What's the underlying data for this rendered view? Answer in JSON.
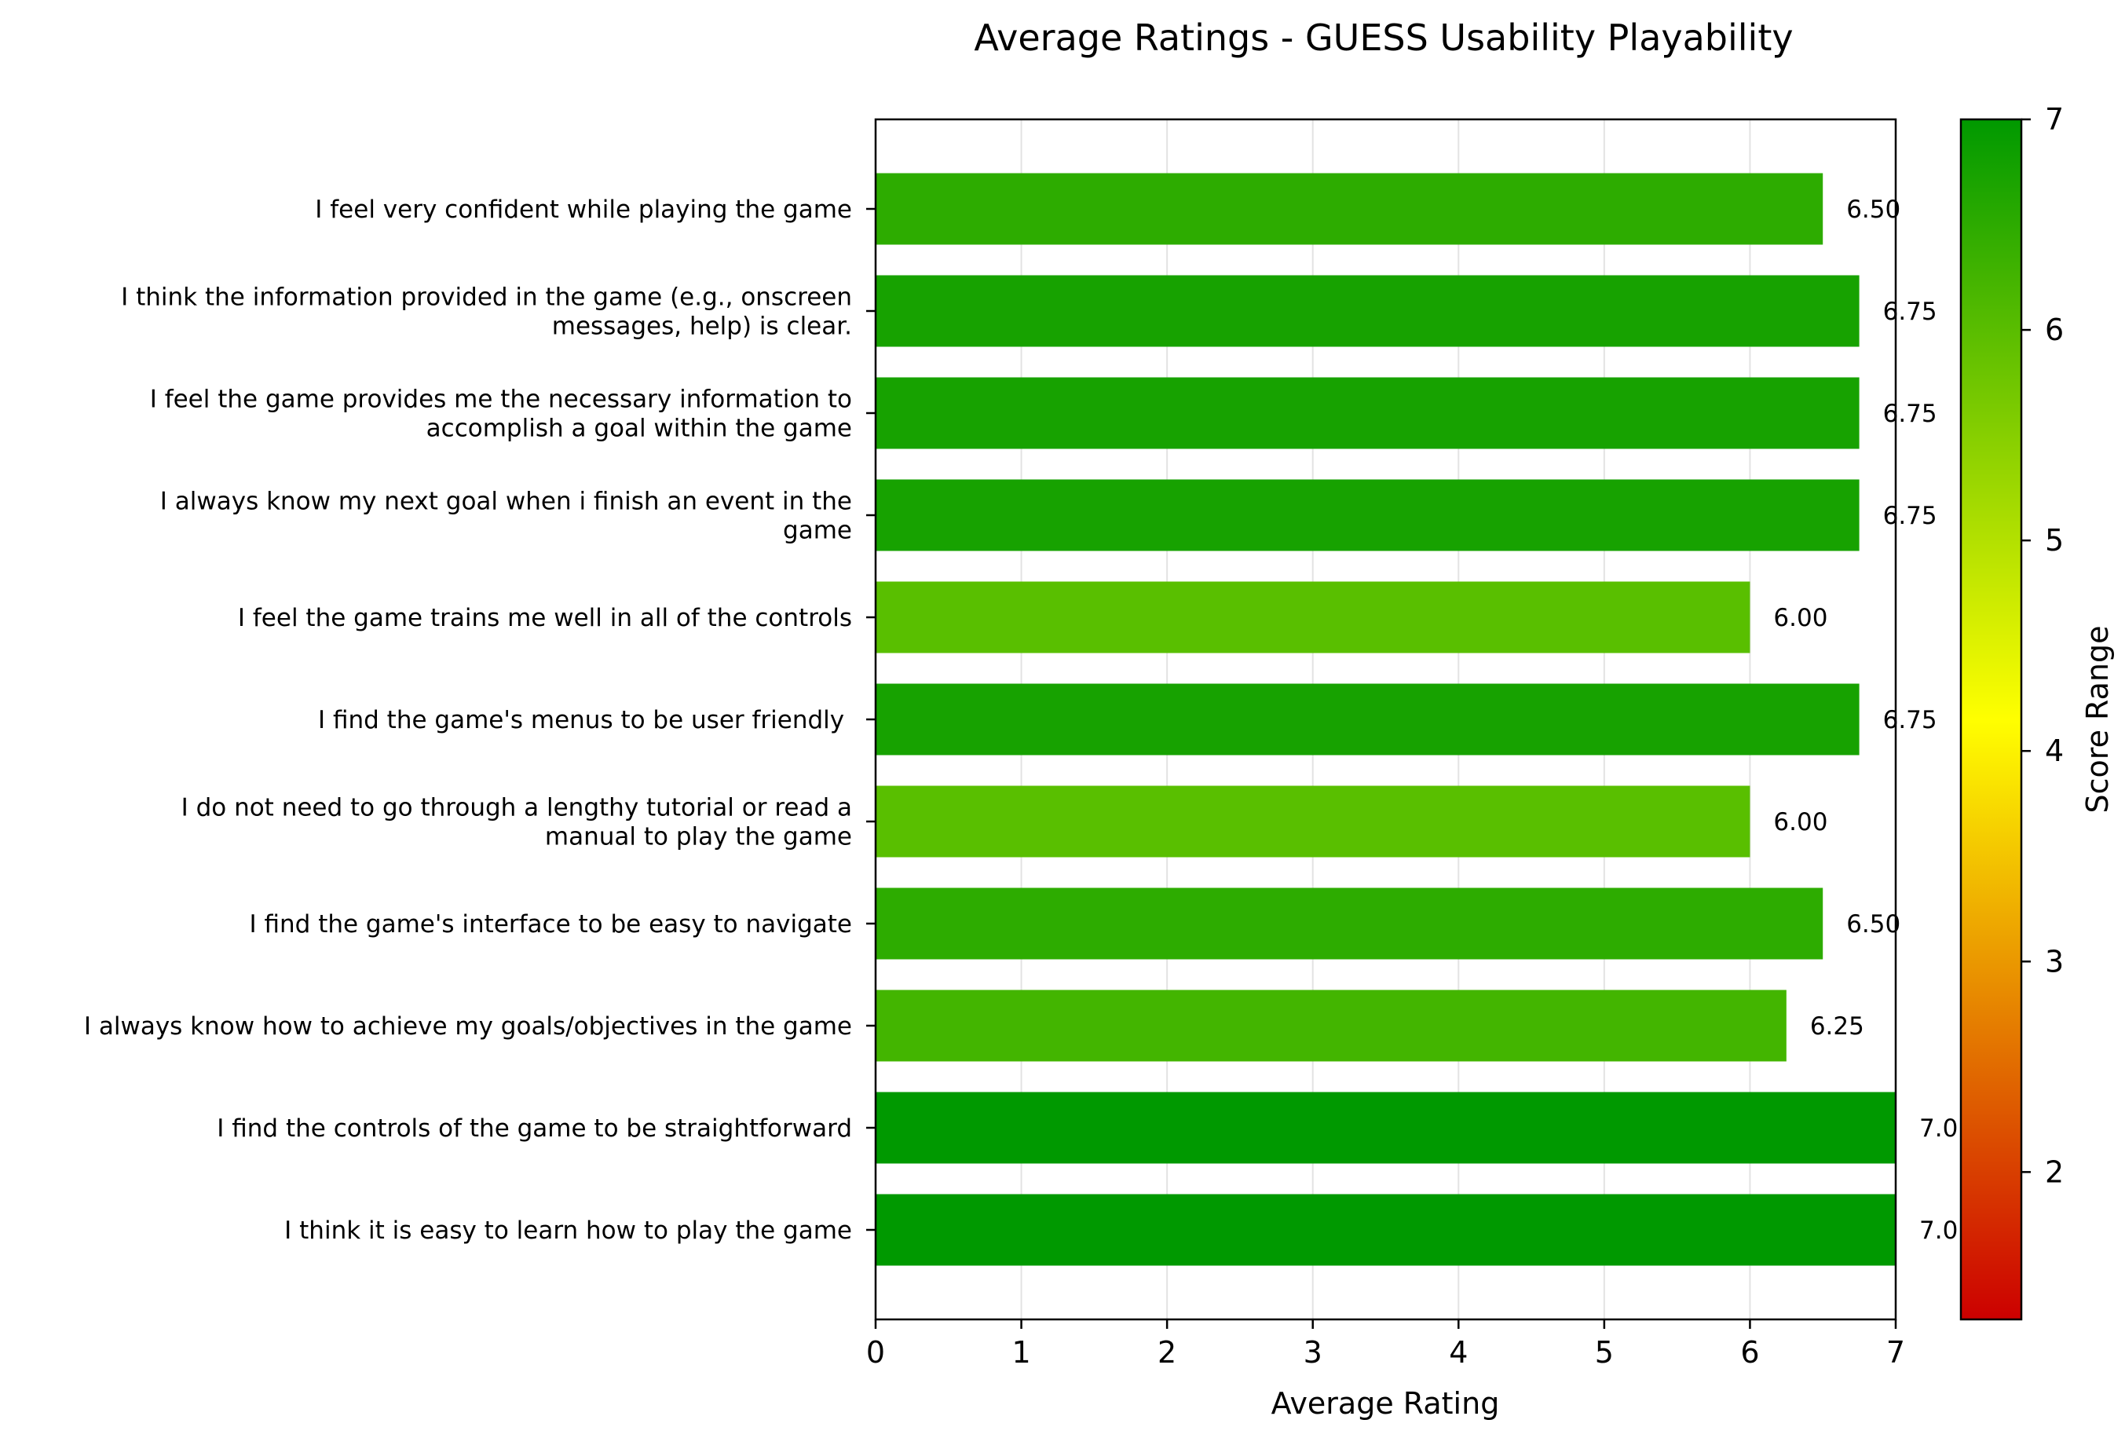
{
  "chart_data": {
    "type": "bar",
    "orientation": "horizontal",
    "title": "Average Ratings - GUESS Usability Playability",
    "xlabel": "Average Rating",
    "xlim": [
      0,
      7
    ],
    "xticks": [
      "0",
      "1",
      "2",
      "3",
      "4",
      "5",
      "6",
      "7"
    ],
    "grid": "vertical",
    "categories": [
      "I feel very confident while playing the game",
      "I think the information provided in the game (e.g., onscreen messages, help) is clear.",
      "I feel the game provides me the necessary information to accomplish a goal within the game",
      "I always know my next goal when i finish an event in the game",
      "I feel the game trains me well in all of the controls",
      "I find the game's menus to be user friendly ",
      "I do not need to go through a lengthy tutorial or read a manual to play the game",
      "I find the game's interface to be easy to navigate",
      "I always know how to achieve my goals/objectives in the game",
      "I find the controls of the game to be straightforward",
      "I think it is easy to learn how to play the game"
    ],
    "category_lines": [
      [
        "I feel very confident while playing the game"
      ],
      [
        "I think the information provided in the game (e.g., onscreen",
        "messages, help) is clear."
      ],
      [
        "I feel the game provides me the necessary information to",
        "accomplish a goal within the game"
      ],
      [
        "I always know my next goal when i finish an event in the",
        "game"
      ],
      [
        "I feel the game trains me well in all of the controls"
      ],
      [
        "I find the game's menus to be user friendly "
      ],
      [
        "I do not need to go through a lengthy tutorial or read a",
        "manual to play the game"
      ],
      [
        "I find the game's interface to be easy to navigate"
      ],
      [
        "I always know how to achieve my goals/objectives in the game"
      ],
      [
        "I find the controls of the game to be straightforward"
      ],
      [
        "I think it is easy to learn how to play the game"
      ]
    ],
    "values": [
      6.5,
      6.75,
      6.75,
      6.75,
      6.0,
      6.75,
      6.0,
      6.5,
      6.25,
      7.0,
      7.0
    ],
    "value_labels": [
      "6.50",
      "6.75",
      "6.75",
      "6.75",
      "6.00",
      "6.75",
      "6.00",
      "6.50",
      "6.25",
      "7.0",
      "7.0"
    ],
    "bar_colors": [
      "#2dac00",
      "#17a200",
      "#17a200",
      "#17a200",
      "#59bf00",
      "#17a200",
      "#59bf00",
      "#2dac00",
      "#43b500",
      "#009900",
      "#009900"
    ],
    "colorbar": {
      "label": "Score Range",
      "range": [
        1.3,
        7
      ],
      "ticks": [
        "2",
        "3",
        "4",
        "5",
        "6",
        "7"
      ],
      "colors": [
        "#cc0000",
        "#ffff00",
        "#009900"
      ]
    }
  }
}
